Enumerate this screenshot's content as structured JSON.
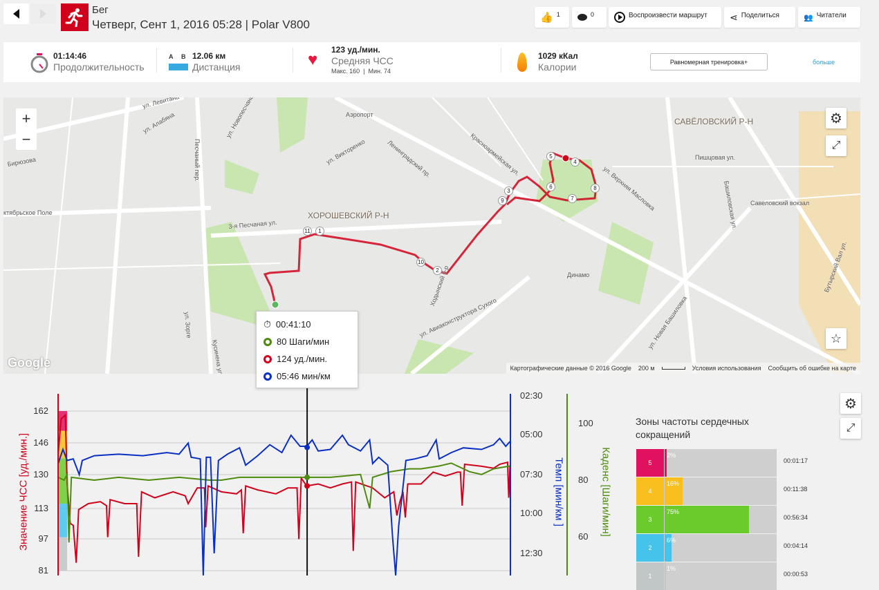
{
  "header": {
    "sport": "Бег",
    "subtitle": "Четверг, Сент 1, 2016 05:28 | Polar V800",
    "likes": "1",
    "comments": "0",
    "replay_label": "Воспроизвести маршрут",
    "share_label": "Поделиться",
    "followers_label": "Читатели"
  },
  "summary": {
    "duration": {
      "value": "01:14:46",
      "label": "Продолжительность"
    },
    "distance": {
      "value": "12.06 км",
      "label": "Дистанция",
      "a": "A",
      "b": "B"
    },
    "heart_rate": {
      "value": "123 уд./мин.",
      "label": "Средняя ЧСС",
      "sub": "Макс. 160  |  Мин. 74"
    },
    "calories": {
      "value": "1029 кКал",
      "label": "Калории"
    },
    "training_benefit": "Равномерная тренировка+",
    "more": "больше"
  },
  "map": {
    "zoom_in": "+",
    "zoom_out": "−",
    "google": "Google",
    "labels": [
      "ул. Левитана",
      "Аэропорт",
      "ХОРОШЕВСКИЙ Р-Н",
      "САВЁЛОВСКИЙ Р-Н",
      "Ленинградский пр.",
      "Динамо",
      "Савеловский вокзал",
      "ул. Новая Башиловка",
      "3-я Песчаная ул.",
      "ул. Авиаконструктора Сухого",
      "Ходынский б-р",
      "Бирюзова",
      "Песчаный пер.",
      "ул. Викторенко",
      "Красноармейская ул.",
      "ктябрьское Поле",
      "ул. Зорге",
      "Кусинена улица",
      "ул. Верхняя Масловка",
      "Бутырский Вал ул.",
      "ул. Алабяна",
      "ул. Новопесчаная",
      "Пишцовая ул.",
      "Башиловская ул."
    ],
    "markers": [
      "1",
      "2",
      "3",
      "4",
      "5",
      "6",
      "7",
      "8",
      "9",
      "10",
      "11"
    ],
    "attribution": {
      "data": "Картографические данные © 2016 Google",
      "scale": "200 м",
      "terms": "Условия использования",
      "report": "Сообщить об ошибке на карте"
    }
  },
  "tooltip": {
    "time": "00:41:10",
    "cadence": "80 Шаги/мин",
    "hr": "124 уд./мин.",
    "pace": "05:46 мин/км"
  },
  "colors": {
    "hr": "#d0021b",
    "pace": "#0a2fc4",
    "cadence": "#4e8a0e"
  },
  "chart_data": {
    "type": "line",
    "x_unit": "minutes",
    "xlim": [
      0,
      74.77
    ],
    "cursor": 41.17,
    "y_left": {
      "label": "Значение ЧСС [уд./мин.]",
      "ticks": [
        "162",
        "146",
        "130",
        "113",
        "97",
        "81"
      ],
      "range": [
        81,
        162
      ]
    },
    "y_pace": {
      "label": "Темп [мин/км ]",
      "ticks": [
        "02:30",
        "05:00",
        "07:30",
        "10:00",
        "12:30"
      ],
      "range_min": [
        2.5,
        12.5
      ]
    },
    "y_cadence": {
      "label": "Каденс [Шаги/мин]",
      "ticks": [
        "100",
        "80",
        "60"
      ],
      "range": [
        55,
        105
      ]
    },
    "series": [
      {
        "name": "hr",
        "points": [
          [
            0,
            140
          ],
          [
            0.5,
            158
          ],
          [
            1.2,
            160
          ],
          [
            1.5,
            125
          ],
          [
            2,
            105
          ],
          [
            2.5,
            104
          ],
          [
            3,
            85
          ],
          [
            3.4,
            112
          ],
          [
            5,
            115
          ],
          [
            7,
            116
          ],
          [
            8,
            114
          ],
          [
            8.2,
            98
          ],
          [
            8.6,
            117
          ],
          [
            11,
            115
          ],
          [
            13,
            115
          ],
          [
            13.3,
            88
          ],
          [
            13.8,
            121
          ],
          [
            16,
            118
          ],
          [
            19,
            121
          ],
          [
            21,
            119
          ],
          [
            21.5,
            115
          ],
          [
            23,
            123
          ],
          [
            24.2,
            123
          ],
          [
            24.4,
            103
          ],
          [
            24.8,
            124
          ],
          [
            27,
            121
          ],
          [
            29.5,
            120
          ],
          [
            30.3,
            122
          ],
          [
            30.6,
            100
          ],
          [
            31,
            124
          ],
          [
            33,
            122
          ],
          [
            36,
            120
          ],
          [
            38,
            123
          ],
          [
            39.5,
            123
          ],
          [
            39.8,
            97
          ],
          [
            40.2,
            128
          ],
          [
            41.1,
            124
          ],
          [
            43,
            125
          ],
          [
            45,
            123
          ],
          [
            47,
            125
          ],
          [
            48.5,
            126
          ],
          [
            48.8,
            91
          ],
          [
            49.2,
            126
          ],
          [
            52,
            123
          ],
          [
            54,
            118
          ],
          [
            55.5,
            121
          ],
          [
            56,
            109
          ],
          [
            56.5,
            116
          ],
          [
            57,
            121
          ],
          [
            57.4,
            108
          ],
          [
            57.8,
            125
          ],
          [
            60,
            125
          ],
          [
            62,
            131
          ],
          [
            64,
            129
          ],
          [
            66,
            131
          ],
          [
            66.5,
            131
          ],
          [
            66.8,
            114
          ],
          [
            67.2,
            135
          ],
          [
            70,
            134
          ],
          [
            72,
            133
          ],
          [
            73,
            135
          ],
          [
            74.3,
            136
          ],
          [
            74.5,
            118
          ],
          [
            74.7,
            134
          ]
        ]
      },
      {
        "name": "cadence",
        "points": [
          [
            0,
            81
          ],
          [
            1,
            80
          ],
          [
            1.5,
            82
          ],
          [
            1.8,
            58
          ],
          [
            2.2,
            81
          ],
          [
            6,
            80
          ],
          [
            10,
            81
          ],
          [
            15,
            80
          ],
          [
            20,
            81
          ],
          [
            25,
            80
          ],
          [
            27,
            80
          ],
          [
            30,
            81
          ],
          [
            35,
            81
          ],
          [
            40,
            81
          ],
          [
            45,
            81
          ],
          [
            50,
            82
          ],
          [
            51.5,
            70
          ],
          [
            52,
            81
          ],
          [
            55,
            83
          ],
          [
            58,
            84
          ],
          [
            60,
            84
          ],
          [
            63,
            85
          ],
          [
            65,
            86
          ],
          [
            68,
            83
          ],
          [
            70,
            82
          ],
          [
            72,
            84
          ],
          [
            74.7,
            85
          ]
        ]
      },
      {
        "name": "pace",
        "points": [
          [
            0,
            6.8
          ],
          [
            0.8,
            5.9
          ],
          [
            1.5,
            6.6
          ],
          [
            2.5,
            6.5
          ],
          [
            3.5,
            7.5
          ],
          [
            4,
            6.6
          ],
          [
            6,
            6.3
          ],
          [
            10,
            6.2
          ],
          [
            14,
            6.3
          ],
          [
            18,
            6.1
          ],
          [
            20,
            6.2
          ],
          [
            21.5,
            5.5
          ],
          [
            22,
            6.4
          ],
          [
            23.5,
            6.5
          ],
          [
            24,
            14
          ],
          [
            24.5,
            6.4
          ],
          [
            25.2,
            6.4
          ],
          [
            25.8,
            12.5
          ],
          [
            26.5,
            6.6
          ],
          [
            28,
            6.2
          ],
          [
            30,
            5.8
          ],
          [
            31,
            6.9
          ],
          [
            33,
            6.3
          ],
          [
            35,
            5.6
          ],
          [
            37,
            6.1
          ],
          [
            38.5,
            5.0
          ],
          [
            40,
            5.7
          ],
          [
            41.1,
            5.7
          ],
          [
            42,
            5.3
          ],
          [
            43,
            6
          ],
          [
            45,
            5.9
          ],
          [
            47,
            5.0
          ],
          [
            48,
            5.6
          ],
          [
            50,
            6.0
          ],
          [
            51.5,
            5.3
          ],
          [
            52,
            6.8
          ],
          [
            53,
            6.4
          ],
          [
            54.5,
            6.9
          ],
          [
            55.3,
            11.5
          ],
          [
            55.8,
            14
          ],
          [
            56.3,
            10.8
          ],
          [
            57.5,
            6.6
          ],
          [
            59,
            6.5
          ],
          [
            61,
            6.3
          ],
          [
            62.5,
            5.3
          ],
          [
            63,
            6.5
          ],
          [
            65,
            6.1
          ],
          [
            67,
            5.8
          ],
          [
            70,
            5.9
          ],
          [
            72,
            5.6
          ],
          [
            73,
            5.2
          ],
          [
            74,
            5.7
          ],
          [
            74.7,
            5.4
          ]
        ]
      }
    ]
  },
  "zones": {
    "title": "Зоны частоты сердечных сокращений",
    "rows": [
      {
        "zone": "5",
        "pct": 2,
        "pct_label": "2%",
        "time": "00:01:17",
        "color": "#e0115f"
      },
      {
        "zone": "4",
        "pct": 16,
        "pct_label": "16%",
        "time": "00:11:38",
        "color": "#f8bf1f"
      },
      {
        "zone": "3",
        "pct": 75,
        "pct_label": "75%",
        "time": "00:56:34",
        "color": "#6ccb2c"
      },
      {
        "zone": "2",
        "pct": 6,
        "pct_label": "6%",
        "time": "00:04:14",
        "color": "#45c3ea"
      },
      {
        "zone": "1",
        "pct": 1,
        "pct_label": "1%",
        "time": "00:00:53",
        "color": "#c1c6c6"
      }
    ]
  }
}
